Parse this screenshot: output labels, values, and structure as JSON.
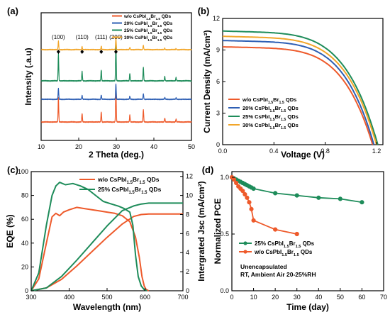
{
  "figure": {
    "colors": {
      "red": "#ee5a2b",
      "blue": "#2e5fb4",
      "green": "#1e8c5a",
      "orange": "#f2a62a"
    },
    "background": "#ffffff"
  },
  "chart_data": [
    {
      "panel": "(a)",
      "type": "line",
      "xlabel": "2 Theta (deg.)",
      "ylabel": "Intensity (.a.u)",
      "xlim": [
        10,
        50
      ],
      "xticks": [
        10,
        20,
        30,
        40,
        50
      ],
      "peak_labels": [
        {
          "label": "(100)",
          "x": 14.6
        },
        {
          "label": "(110)",
          "x": 20.9
        },
        {
          "label": "(111)",
          "x": 26.0
        },
        {
          "label": "(200)",
          "x": 29.9
        }
      ],
      "peaks": [
        {
          "x": 14.6,
          "h": 0.5
        },
        {
          "x": 20.9,
          "h": 0.17
        },
        {
          "x": 26.0,
          "h": 0.2
        },
        {
          "x": 29.9,
          "h": 0.7
        },
        {
          "x": 33.6,
          "h": 0.14
        },
        {
          "x": 37.2,
          "h": 0.25
        },
        {
          "x": 42.9,
          "h": 0.08
        },
        {
          "x": 45.9,
          "h": 0.06
        }
      ],
      "series": [
        {
          "name": "w/o CsPbI1.5Br1.5 QDs",
          "sub": [
            "1.5",
            "1.5"
          ],
          "pre": "w/o CsPbI",
          "mid": "Br",
          "post": " QDs",
          "color": "#ee5a2b",
          "offset": 0,
          "scale": 1.0
        },
        {
          "name": "20% CsPbI1.5Br1.5 QDs",
          "sub": [
            "1.5",
            "1.5"
          ],
          "pre": "20% CsPbI",
          "mid": "Br",
          "post": " QDs",
          "color": "#2e5fb4",
          "offset": 1,
          "scale": 0.45
        },
        {
          "name": "25% CsPbI1.5Br1.5 QDs",
          "sub": [
            "1.5",
            "1.5"
          ],
          "pre": "25% CsPbI",
          "mid": "Br",
          "post": " QDs",
          "color": "#1e8c5a",
          "offset": 2,
          "scale": 1.1
        },
        {
          "name": "30% CsPbI1.5Br1.5 QDs",
          "sub": [
            "1.5",
            "1.5"
          ],
          "pre": "30% CsPbI",
          "mid": "Br",
          "post": " QDs",
          "color": "#f2a62a",
          "offset": 3,
          "scale": 0.35
        }
      ]
    },
    {
      "panel": "(b)",
      "type": "line",
      "xlabel": "Voltage (V)",
      "ylabel": "Current Density (mA/cm²)",
      "xlim": [
        0.0,
        1.25
      ],
      "ylim": [
        0,
        12
      ],
      "xticks": [
        0.0,
        0.4,
        0.8,
        1.2
      ],
      "yticks": [
        0,
        3,
        6,
        9,
        12
      ],
      "series": [
        {
          "name": "w/o CsPbI1.5Br1.5 QDs",
          "color": "#ee5a2b",
          "jsc": 9.3,
          "voc": 1.17,
          "shape": 5.2
        },
        {
          "name": "20% CsPbI1.5Br1.5 QDs",
          "color": "#2e5fb4",
          "jsc": 9.9,
          "voc": 1.18,
          "shape": 5.2
        },
        {
          "name": "25% CsPbI1.5Br1.5 QDs",
          "color": "#1e8c5a",
          "jsc": 10.8,
          "voc": 1.21,
          "shape": 5.0
        },
        {
          "name": "30% CsPbI1.5Br1.5 QDs",
          "color": "#f2a62a",
          "jsc": 10.3,
          "voc": 1.2,
          "shape": 5.1
        }
      ],
      "legend_order": [
        0,
        1,
        2,
        3
      ]
    },
    {
      "panel": "(c)",
      "type": "line",
      "xlabel": "Wavelength (nm)",
      "ylabel": "EQE (%)",
      "y2label": "Intergrated Jsc (mA/cm²)",
      "xlim": [
        300,
        700
      ],
      "ylim": [
        0,
        100
      ],
      "y2lim": [
        0,
        12.5
      ],
      "xticks": [
        300,
        400,
        500,
        600,
        700
      ],
      "yticks": [
        0,
        20,
        40,
        60,
        80,
        100
      ],
      "y2ticks": [
        0,
        2,
        4,
        6,
        8,
        10,
        12
      ],
      "series": [
        {
          "name": "w/o CsPbI1.5Br1.5 QDs",
          "color": "#ee5a2b",
          "eqe_x": [
            300,
            320,
            340,
            355,
            365,
            375,
            385,
            400,
            420,
            440,
            460,
            480,
            500,
            520,
            540,
            560,
            575,
            585,
            592,
            598,
            603,
            610
          ],
          "eqe_y": [
            0,
            10,
            40,
            62,
            65,
            63,
            66,
            68,
            70,
            69,
            68,
            67,
            66,
            65,
            63,
            58,
            45,
            28,
            12,
            4,
            1,
            0
          ],
          "jsc_x": [
            300,
            340,
            380,
            420,
            460,
            500,
            540,
            570,
            590,
            610,
            700
          ],
          "jsc_y": [
            0,
            0.3,
            1.2,
            2.6,
            4.1,
            5.6,
            7.0,
            7.8,
            8.0,
            8.05,
            8.05
          ]
        },
        {
          "name": "25% CsPbI1.5Br1.5 QDs",
          "color": "#1e8c5a",
          "eqe_x": [
            300,
            320,
            340,
            355,
            365,
            375,
            390,
            410,
            430,
            450,
            470,
            490,
            510,
            530,
            545,
            560,
            568,
            575,
            582,
            590,
            598,
            605
          ],
          "eqe_y": [
            0,
            15,
            55,
            80,
            88,
            91,
            89,
            90,
            88,
            85,
            80,
            75,
            73,
            71,
            69,
            66,
            55,
            30,
            12,
            4,
            1,
            0
          ],
          "jsc_x": [
            300,
            340,
            380,
            420,
            460,
            500,
            540,
            570,
            590,
            610,
            700
          ],
          "jsc_y": [
            0,
            0.3,
            1.5,
            3.2,
            5.0,
            6.8,
            8.4,
            8.9,
            9.1,
            9.2,
            9.2
          ]
        }
      ]
    },
    {
      "panel": "(d)",
      "type": "line",
      "xlabel": "Time (day)",
      "ylabel": "Normalized PCE",
      "xlim": [
        0,
        70
      ],
      "ylim": [
        0.0,
        1.05
      ],
      "xticks": [
        0,
        10,
        20,
        30,
        40,
        50,
        60,
        70
      ],
      "yticks": [
        0.0,
        0.5,
        1.0
      ],
      "annotation": [
        "Unencapsulated",
        "RT, Ambient Air 20-25%RH"
      ],
      "series": [
        {
          "name": "25% CsPbI1.5Br1.5 QDs",
          "color": "#1e8c5a",
          "x": [
            0,
            1,
            2,
            3,
            4,
            5,
            6,
            7,
            8,
            9,
            10,
            20,
            30,
            40,
            50,
            60
          ],
          "y": [
            1.0,
            0.99,
            0.98,
            0.97,
            0.96,
            0.95,
            0.94,
            0.93,
            0.92,
            0.91,
            0.9,
            0.86,
            0.84,
            0.82,
            0.81,
            0.78
          ]
        },
        {
          "name": "w/o CsPbI1.5Br1.5 QDs",
          "color": "#ee5a2b",
          "x": [
            0,
            1,
            2,
            3,
            4,
            5,
            6,
            7,
            8,
            9,
            10,
            20,
            30
          ],
          "y": [
            1.0,
            0.98,
            0.95,
            0.92,
            0.9,
            0.88,
            0.85,
            0.82,
            0.78,
            0.72,
            0.62,
            0.54,
            0.5
          ]
        }
      ]
    }
  ]
}
